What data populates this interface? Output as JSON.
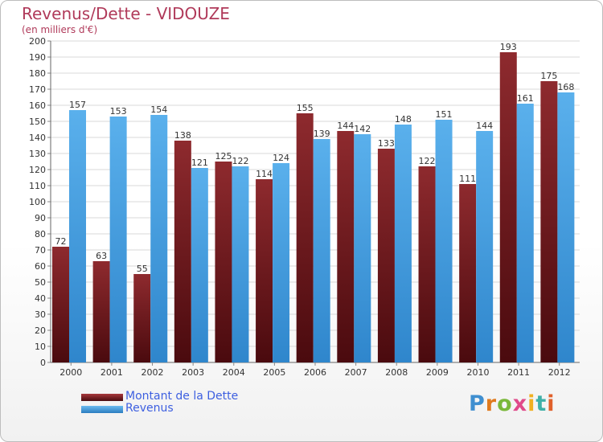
{
  "header": {
    "title": "Revenus/Dette - VIDOUZE",
    "subtitle": "(en milliers d'€)"
  },
  "colors": {
    "title": "#b03a5a",
    "dette": "#7a1e22",
    "revenus": "#3f9ee0",
    "legend_text": "#3d5fe0",
    "grid": "#d8d8d8"
  },
  "chart_data": {
    "type": "bar",
    "categories": [
      "2000",
      "2001",
      "2002",
      "2003",
      "2004",
      "2005",
      "2006",
      "2007",
      "2008",
      "2009",
      "2010",
      "2011",
      "2012"
    ],
    "series": [
      {
        "name": "Montant de la Dette",
        "values": [
          72,
          63,
          55,
          138,
          125,
          114,
          155,
          144,
          133,
          122,
          111,
          193,
          175
        ]
      },
      {
        "name": "Revenus",
        "values": [
          157,
          153,
          154,
          121,
          122,
          124,
          139,
          142,
          148,
          151,
          144,
          161,
          168
        ]
      }
    ],
    "ylim": [
      0,
      200
    ],
    "ytick_step": 10,
    "grid": true,
    "legend_position": "bottom-left",
    "data_labels": true
  },
  "legend": {
    "items": [
      {
        "label": "Montant de la Dette",
        "color": "#7a1e22"
      },
      {
        "label": "Revenus",
        "color": "#3f9ee0"
      }
    ]
  },
  "brand": {
    "text": "Proxiti"
  }
}
